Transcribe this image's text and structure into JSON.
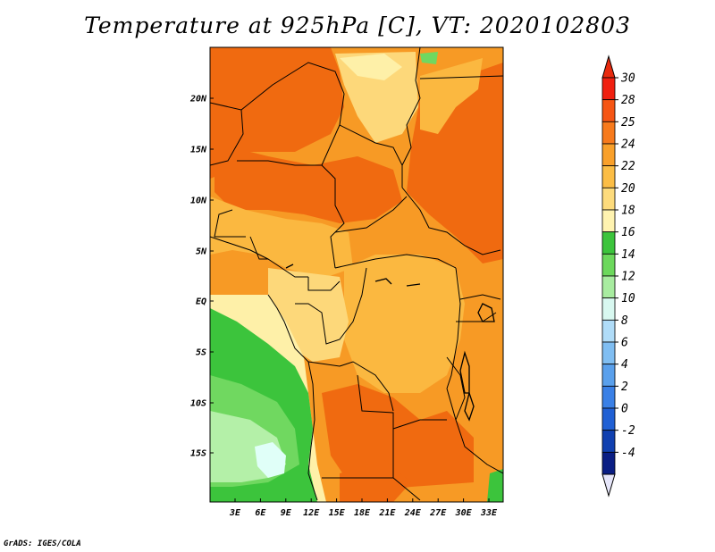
{
  "title": "Temperature at 925hPa [C], VT: 2020102803",
  "credit": "GrADS: IGES/COLA",
  "map": {
    "lon_ticks": [
      "3E",
      "6E",
      "9E",
      "12E",
      "15E",
      "18E",
      "21E",
      "24E",
      "27E",
      "30E",
      "33E"
    ],
    "lat_ticks": [
      "20N",
      "15N",
      "10N",
      "5N",
      "EQ",
      "5S",
      "10S",
      "15S"
    ],
    "colors": {
      "hot": "#f06a10",
      "warm": "#f79a25",
      "mild": "#fbb840",
      "pale": "#fdd87a",
      "cream": "#fef0a8",
      "green_dark": "#3cc43c",
      "green": "#70d860",
      "green_light": "#b4f0a8",
      "cyan": "#e0fff8"
    }
  },
  "colorbar": {
    "labels": [
      "30",
      "28",
      "25",
      "24",
      "22",
      "20",
      "18",
      "16",
      "14",
      "12",
      "10",
      "8",
      "6",
      "4",
      "2",
      "0",
      "-2",
      "-4"
    ],
    "colors": [
      "#f02010",
      "#f55514",
      "#f77a1c",
      "#f9a02a",
      "#fbbd45",
      "#fddb7c",
      "#fff3b0",
      "#3cc43c",
      "#6cd85c",
      "#a8eca0",
      "#d8f8f0",
      "#b0dcf8",
      "#80bef2",
      "#5aa0ec",
      "#3a80e6",
      "#2060d4",
      "#1040b0",
      "#0a1e84"
    ],
    "cap_top": "#e82a0e",
    "cap_bottom": "#e6e6fa"
  }
}
